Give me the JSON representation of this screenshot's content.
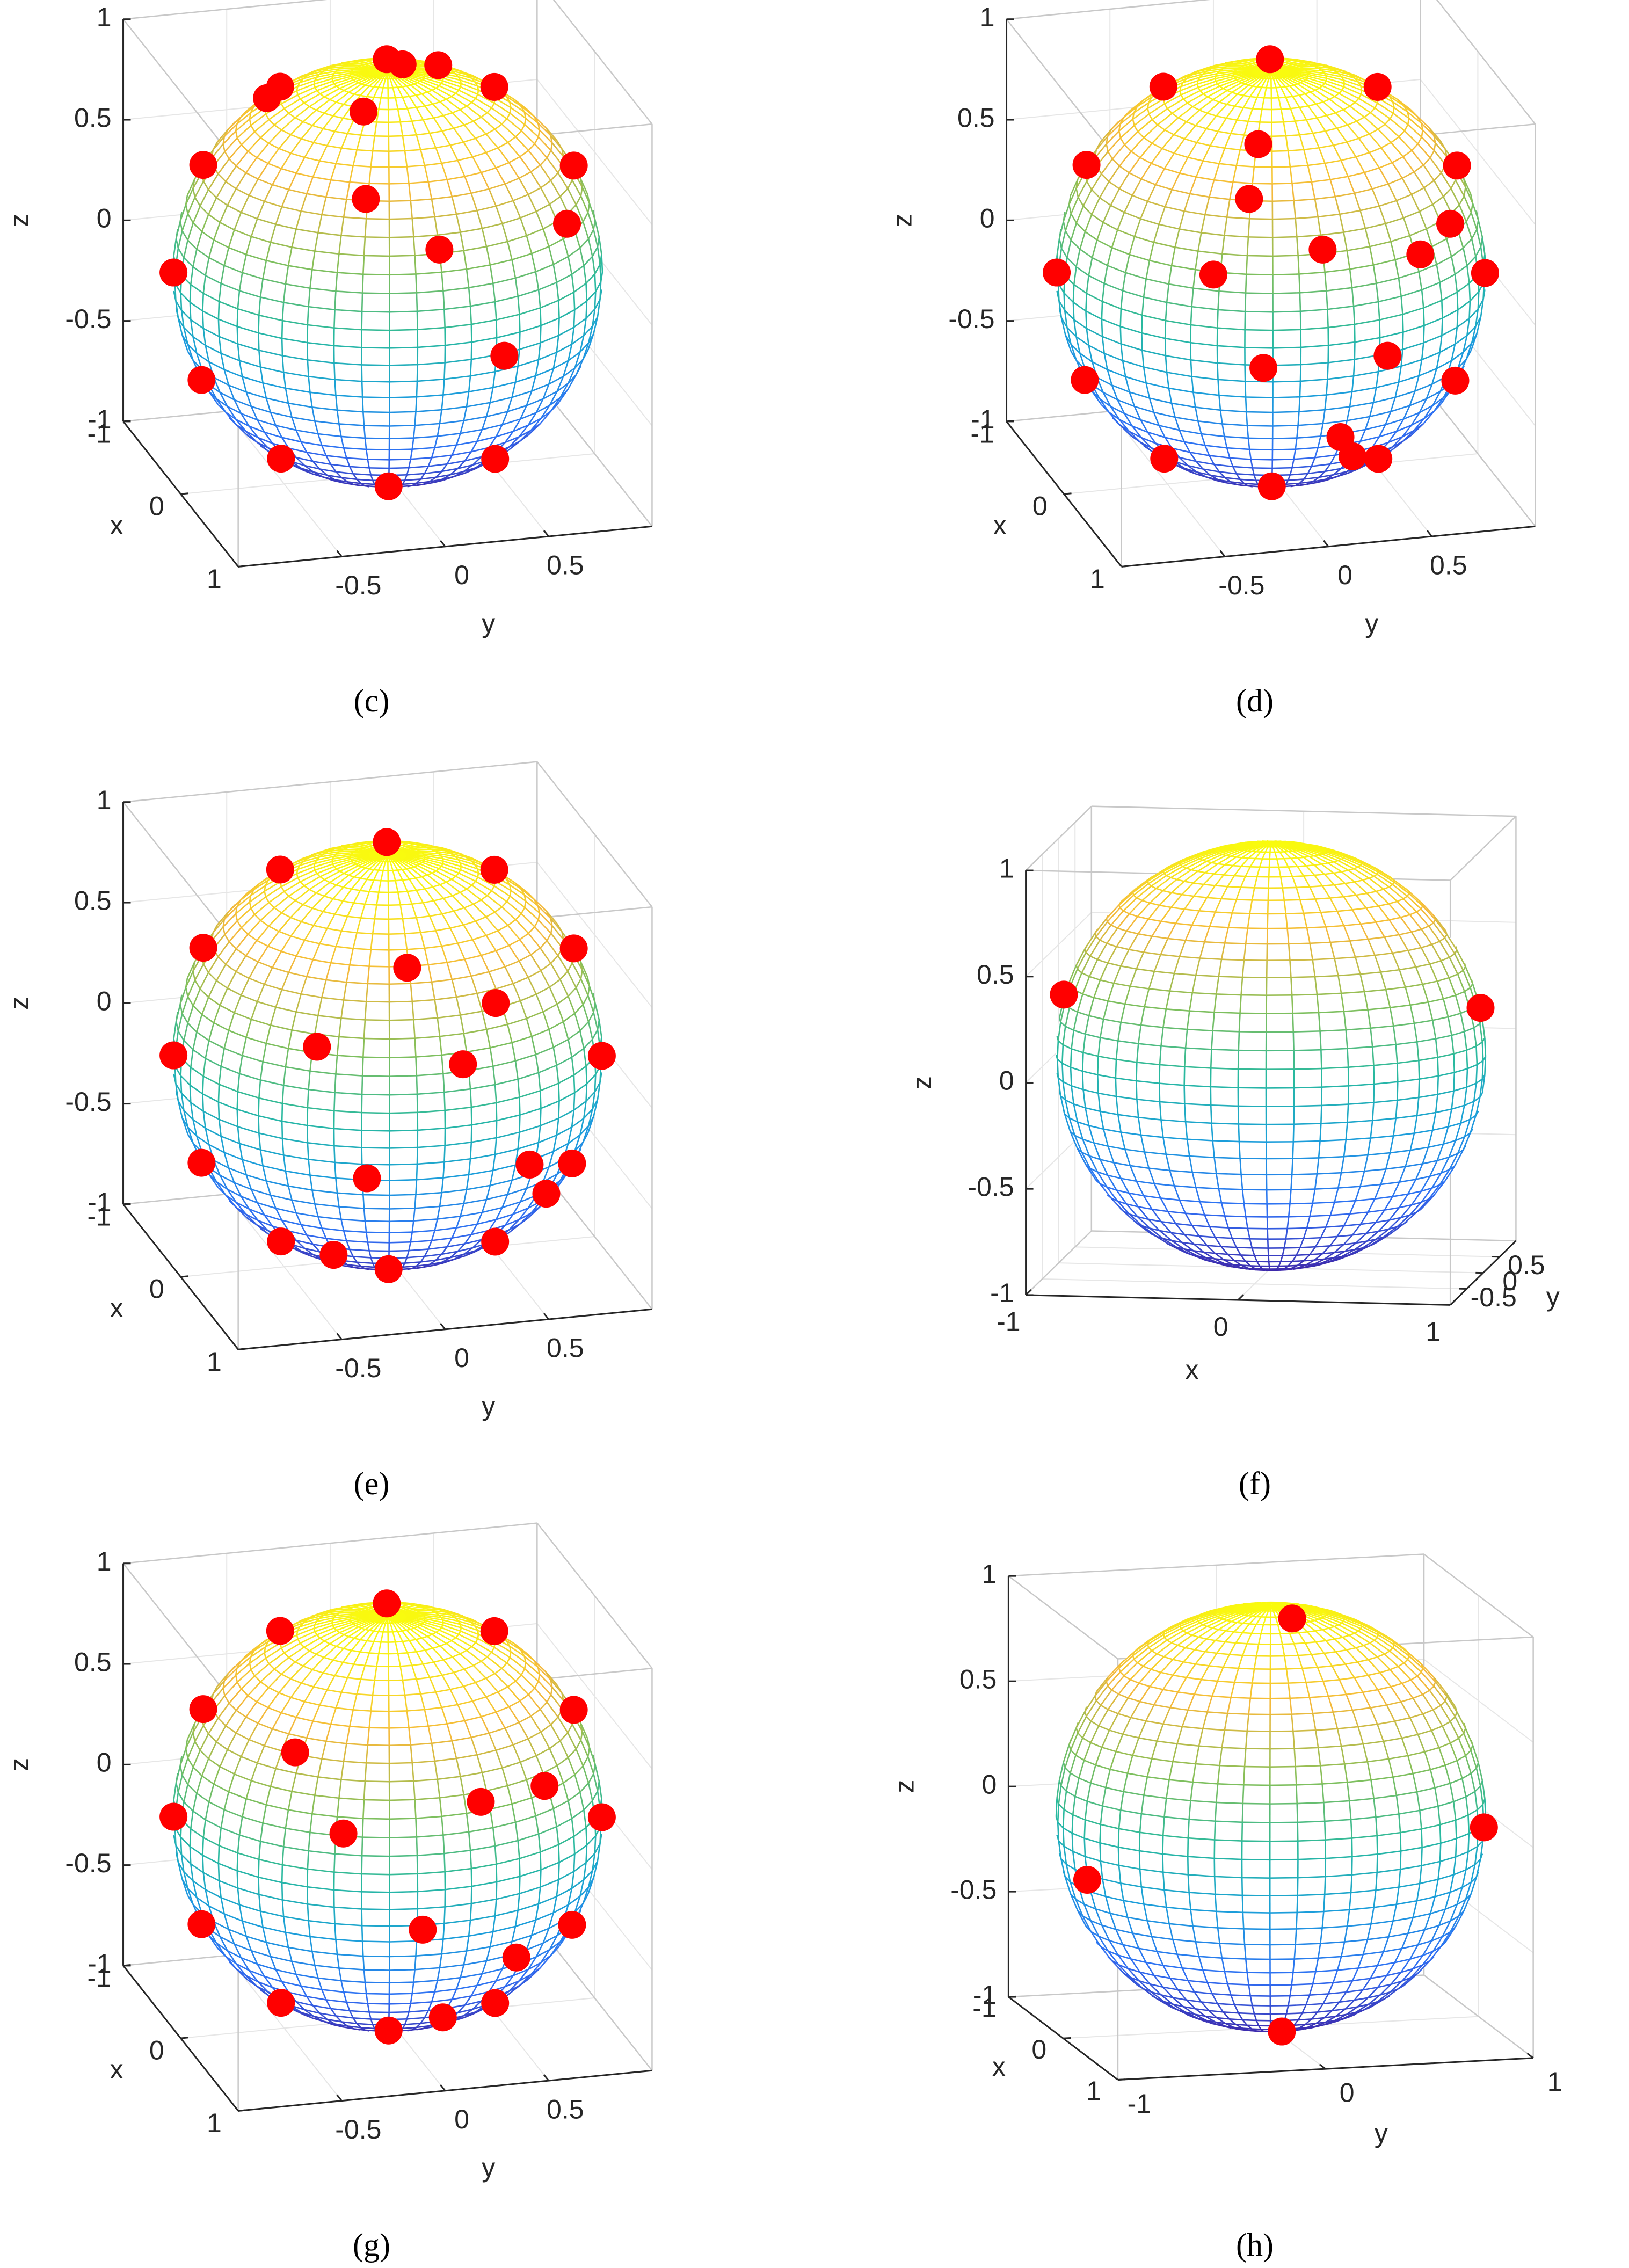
{
  "chart_data": [
    {
      "type": "scatter3d",
      "caption": "(c)",
      "xlabel": "x",
      "ylabel": "y",
      "zlabel": "z",
      "xlim": [
        -1,
        1
      ],
      "ylim": [
        -1,
        1
      ],
      "zlim": [
        -1,
        1
      ],
      "xticks": [
        -1,
        0,
        1
      ],
      "yticks": [
        -0.5,
        0,
        0.5
      ],
      "zticks": [
        -1,
        -0.5,
        0,
        0.5,
        1
      ],
      "color": "#ff0000",
      "x": [
        -0.34,
        -0.16,
        0.07,
        -0.43,
        -0.4,
        -0.27,
        -0.07,
        0.16,
        0.34,
        0.43,
        -0.2,
        0.9,
        0.7,
        0.95,
        0.6,
        0.3,
        -0.1,
        -0.3
      ],
      "y": [
        0.09,
        0.56,
        0.88,
        -0.4,
        -0.78,
        -0.96,
        -0.88,
        -0.56,
        -0.09,
        0.4,
        0.3,
        0.0,
        -0.3,
        0.3,
        0.7,
        -0.2,
        0.1,
        -0.5
      ],
      "z": [
        0.93,
        0.81,
        0.47,
        0.81,
        0.47,
        0.0,
        -0.47,
        -0.81,
        -0.93,
        -0.81,
        0.93,
        0.44,
        0.65,
        -0.1,
        0.39,
        0.93,
        0.99,
        0.81
      ]
    },
    {
      "type": "scatter3d",
      "caption": "(d)",
      "xlabel": "x",
      "ylabel": "y",
      "zlabel": "z",
      "xlim": [
        -1,
        1
      ],
      "ylim": [
        -1,
        1
      ],
      "zlim": [
        -1,
        1
      ],
      "xticks": [
        -1,
        0,
        1
      ],
      "yticks": [
        -0.5,
        0,
        0.5
      ],
      "zticks": [
        -1,
        -0.5,
        0,
        0.5,
        1
      ],
      "color": "#ff0000",
      "x": [
        0.27,
        0.07,
        -0.16,
        -0.34,
        -0.43,
        -0.4,
        -0.27,
        -0.07,
        0.16,
        0.34,
        0.43,
        0.4,
        0.9,
        0.8,
        0.8,
        0.95,
        0.95,
        0.7,
        0.7,
        0.6,
        0.85,
        0.5
      ],
      "y": [
        0.96,
        0.88,
        0.56,
        0.09,
        -0.4,
        -0.78,
        -0.96,
        -0.88,
        -0.56,
        -0.09,
        0.4,
        0.78,
        0.0,
        0.5,
        -0.5,
        0.3,
        -0.3,
        0.2,
        -0.3,
        0.7,
        0.1,
        -0.2
      ],
      "z": [
        0.0,
        0.47,
        0.81,
        0.93,
        0.81,
        0.47,
        0.0,
        -0.47,
        -0.81,
        -0.93,
        -0.81,
        -0.47,
        0.44,
        0.33,
        0.33,
        -0.1,
        -0.1,
        -0.68,
        0.65,
        0.39,
        -0.52,
        0.84
      ]
    },
    {
      "type": "scatter3d",
      "caption": "(e)",
      "xlabel": "x",
      "ylabel": "y",
      "zlabel": "z",
      "xlim": [
        -1,
        1
      ],
      "ylim": [
        -1,
        1
      ],
      "zlim": [
        -1,
        1
      ],
      "xticks": [
        -1,
        0,
        1
      ],
      "yticks": [
        -0.5,
        0,
        0.5
      ],
      "zticks": [
        -1,
        -0.5,
        0,
        0.5,
        1
      ],
      "color": "#ff0000",
      "x": [
        0.27,
        0.07,
        -0.16,
        -0.34,
        -0.43,
        -0.4,
        -0.27,
        -0.07,
        0.16,
        0.34,
        0.43,
        0.4,
        0.95,
        0.85,
        0.75,
        0.9,
        0.8,
        0.6,
        0.7,
        0.5
      ],
      "y": [
        0.96,
        0.88,
        0.56,
        0.09,
        -0.4,
        -0.78,
        -0.96,
        -0.88,
        -0.56,
        -0.09,
        0.4,
        0.78,
        0.1,
        0.45,
        -0.55,
        -0.35,
        0.3,
        0.6,
        -0.1,
        -0.4
      ],
      "z": [
        0.0,
        0.47,
        0.81,
        0.93,
        0.81,
        0.47,
        0.0,
        -0.47,
        -0.81,
        -0.93,
        -0.81,
        -0.47,
        0.29,
        -0.28,
        0.37,
        -0.25,
        0.52,
        -0.53,
        0.7,
        -0.77
      ]
    },
    {
      "type": "scatter3d",
      "caption": "(f)",
      "xlabel": "x",
      "ylabel": "y",
      "zlabel": "z",
      "xlim": [
        -1,
        1
      ],
      "ylim": [
        -1,
        1
      ],
      "zlim": [
        -1,
        1
      ],
      "xticks": [
        -1,
        0,
        1
      ],
      "yticks": [
        -0.5,
        0,
        0.5
      ],
      "zticks": [
        -1,
        -0.5,
        0,
        0.5,
        1
      ],
      "color": "#ff0000",
      "x": [
        -0.96,
        0.96
      ],
      "y": [
        -0.1,
        0.18
      ],
      "z": [
        0.28,
        0.22
      ]
    },
    {
      "type": "scatter3d",
      "caption": "(g)",
      "xlabel": "x",
      "ylabel": "y",
      "zlabel": "z",
      "xlim": [
        -1,
        1
      ],
      "ylim": [
        -1,
        1
      ],
      "zlim": [
        -1,
        1
      ],
      "xticks": [
        -1,
        0,
        1
      ],
      "yticks": [
        -0.5,
        0,
        0.5
      ],
      "zticks": [
        -1,
        -0.5,
        0,
        0.5,
        1
      ],
      "color": "#ff0000",
      "x": [
        0.27,
        0.07,
        -0.16,
        -0.34,
        -0.43,
        -0.4,
        -0.27,
        -0.07,
        0.16,
        0.34,
        0.43,
        0.4,
        0.97,
        0.8,
        0.85,
        0.6,
        0.75,
        0.9,
        0.55
      ],
      "y": [
        0.96,
        0.88,
        0.56,
        0.09,
        -0.4,
        -0.78,
        -0.96,
        -0.88,
        -0.56,
        -0.09,
        0.4,
        0.78,
        -0.1,
        0.4,
        -0.45,
        0.1,
        0.55,
        0.2,
        -0.6
      ],
      "z": [
        0.0,
        0.47,
        0.81,
        0.93,
        0.81,
        0.47,
        0.0,
        -0.47,
        -0.81,
        -0.93,
        -0.81,
        -0.47,
        -0.2,
        -0.45,
        0.27,
        -0.79,
        0.37,
        0.38,
        0.58
      ]
    },
    {
      "type": "scatter3d",
      "caption": "(h)",
      "xlabel": "x",
      "ylabel": "y",
      "zlabel": "z",
      "xlim": [
        -1,
        1
      ],
      "ylim": [
        -1,
        1
      ],
      "zlim": [
        -1,
        1
      ],
      "xticks": [
        -1,
        0,
        1
      ],
      "yticks": [
        -1,
        0,
        1
      ],
      "zticks": [
        -1,
        -0.5,
        0,
        0.5,
        1
      ],
      "color": "#ff0000",
      "x": [
        0.2,
        0.2,
        0.25,
        0.25
      ],
      "y": [
        0.05,
        0.0,
        -0.95,
        0.96
      ],
      "z": [
        0.98,
        -0.98,
        -0.2,
        -0.05
      ]
    }
  ]
}
